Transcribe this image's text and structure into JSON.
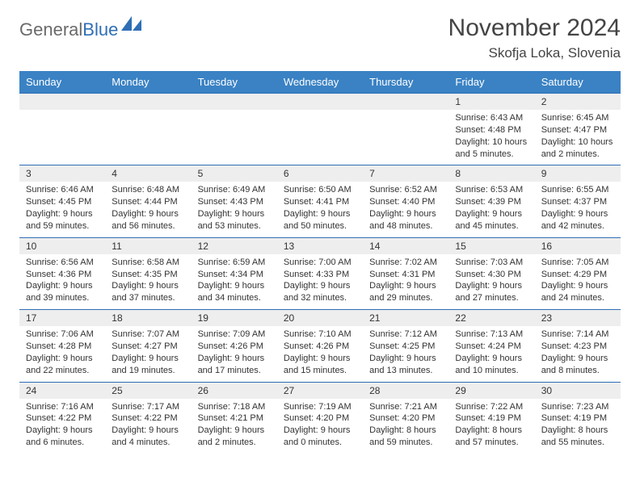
{
  "logo": {
    "part1": "General",
    "part2": "Blue",
    "brand_color": "#2f6fb5",
    "gray": "#6a6a6a"
  },
  "title": "November 2024",
  "location": "Skofja Loka, Slovenia",
  "colors": {
    "header_bg": "#3a82c4",
    "header_fg": "#ffffff",
    "daynum_bg": "#eeeeee",
    "row_border": "#2f6fb5",
    "text": "#333333",
    "title_text": "#444444"
  },
  "weekdays": [
    "Sunday",
    "Monday",
    "Tuesday",
    "Wednesday",
    "Thursday",
    "Friday",
    "Saturday"
  ],
  "weeks": [
    [
      null,
      null,
      null,
      null,
      null,
      {
        "n": "1",
        "sr": "6:43 AM",
        "ss": "4:48 PM",
        "dl": "10 hours and 5 minutes."
      },
      {
        "n": "2",
        "sr": "6:45 AM",
        "ss": "4:47 PM",
        "dl": "10 hours and 2 minutes."
      }
    ],
    [
      {
        "n": "3",
        "sr": "6:46 AM",
        "ss": "4:45 PM",
        "dl": "9 hours and 59 minutes."
      },
      {
        "n": "4",
        "sr": "6:48 AM",
        "ss": "4:44 PM",
        "dl": "9 hours and 56 minutes."
      },
      {
        "n": "5",
        "sr": "6:49 AM",
        "ss": "4:43 PM",
        "dl": "9 hours and 53 minutes."
      },
      {
        "n": "6",
        "sr": "6:50 AM",
        "ss": "4:41 PM",
        "dl": "9 hours and 50 minutes."
      },
      {
        "n": "7",
        "sr": "6:52 AM",
        "ss": "4:40 PM",
        "dl": "9 hours and 48 minutes."
      },
      {
        "n": "8",
        "sr": "6:53 AM",
        "ss": "4:39 PM",
        "dl": "9 hours and 45 minutes."
      },
      {
        "n": "9",
        "sr": "6:55 AM",
        "ss": "4:37 PM",
        "dl": "9 hours and 42 minutes."
      }
    ],
    [
      {
        "n": "10",
        "sr": "6:56 AM",
        "ss": "4:36 PM",
        "dl": "9 hours and 39 minutes."
      },
      {
        "n": "11",
        "sr": "6:58 AM",
        "ss": "4:35 PM",
        "dl": "9 hours and 37 minutes."
      },
      {
        "n": "12",
        "sr": "6:59 AM",
        "ss": "4:34 PM",
        "dl": "9 hours and 34 minutes."
      },
      {
        "n": "13",
        "sr": "7:00 AM",
        "ss": "4:33 PM",
        "dl": "9 hours and 32 minutes."
      },
      {
        "n": "14",
        "sr": "7:02 AM",
        "ss": "4:31 PM",
        "dl": "9 hours and 29 minutes."
      },
      {
        "n": "15",
        "sr": "7:03 AM",
        "ss": "4:30 PM",
        "dl": "9 hours and 27 minutes."
      },
      {
        "n": "16",
        "sr": "7:05 AM",
        "ss": "4:29 PM",
        "dl": "9 hours and 24 minutes."
      }
    ],
    [
      {
        "n": "17",
        "sr": "7:06 AM",
        "ss": "4:28 PM",
        "dl": "9 hours and 22 minutes."
      },
      {
        "n": "18",
        "sr": "7:07 AM",
        "ss": "4:27 PM",
        "dl": "9 hours and 19 minutes."
      },
      {
        "n": "19",
        "sr": "7:09 AM",
        "ss": "4:26 PM",
        "dl": "9 hours and 17 minutes."
      },
      {
        "n": "20",
        "sr": "7:10 AM",
        "ss": "4:26 PM",
        "dl": "9 hours and 15 minutes."
      },
      {
        "n": "21",
        "sr": "7:12 AM",
        "ss": "4:25 PM",
        "dl": "9 hours and 13 minutes."
      },
      {
        "n": "22",
        "sr": "7:13 AM",
        "ss": "4:24 PM",
        "dl": "9 hours and 10 minutes."
      },
      {
        "n": "23",
        "sr": "7:14 AM",
        "ss": "4:23 PM",
        "dl": "9 hours and 8 minutes."
      }
    ],
    [
      {
        "n": "24",
        "sr": "7:16 AM",
        "ss": "4:22 PM",
        "dl": "9 hours and 6 minutes."
      },
      {
        "n": "25",
        "sr": "7:17 AM",
        "ss": "4:22 PM",
        "dl": "9 hours and 4 minutes."
      },
      {
        "n": "26",
        "sr": "7:18 AM",
        "ss": "4:21 PM",
        "dl": "9 hours and 2 minutes."
      },
      {
        "n": "27",
        "sr": "7:19 AM",
        "ss": "4:20 PM",
        "dl": "9 hours and 0 minutes."
      },
      {
        "n": "28",
        "sr": "7:21 AM",
        "ss": "4:20 PM",
        "dl": "8 hours and 59 minutes."
      },
      {
        "n": "29",
        "sr": "7:22 AM",
        "ss": "4:19 PM",
        "dl": "8 hours and 57 minutes."
      },
      {
        "n": "30",
        "sr": "7:23 AM",
        "ss": "4:19 PM",
        "dl": "8 hours and 55 minutes."
      }
    ]
  ],
  "labels": {
    "sunrise": "Sunrise: ",
    "sunset": "Sunset: ",
    "daylight": "Daylight: "
  }
}
